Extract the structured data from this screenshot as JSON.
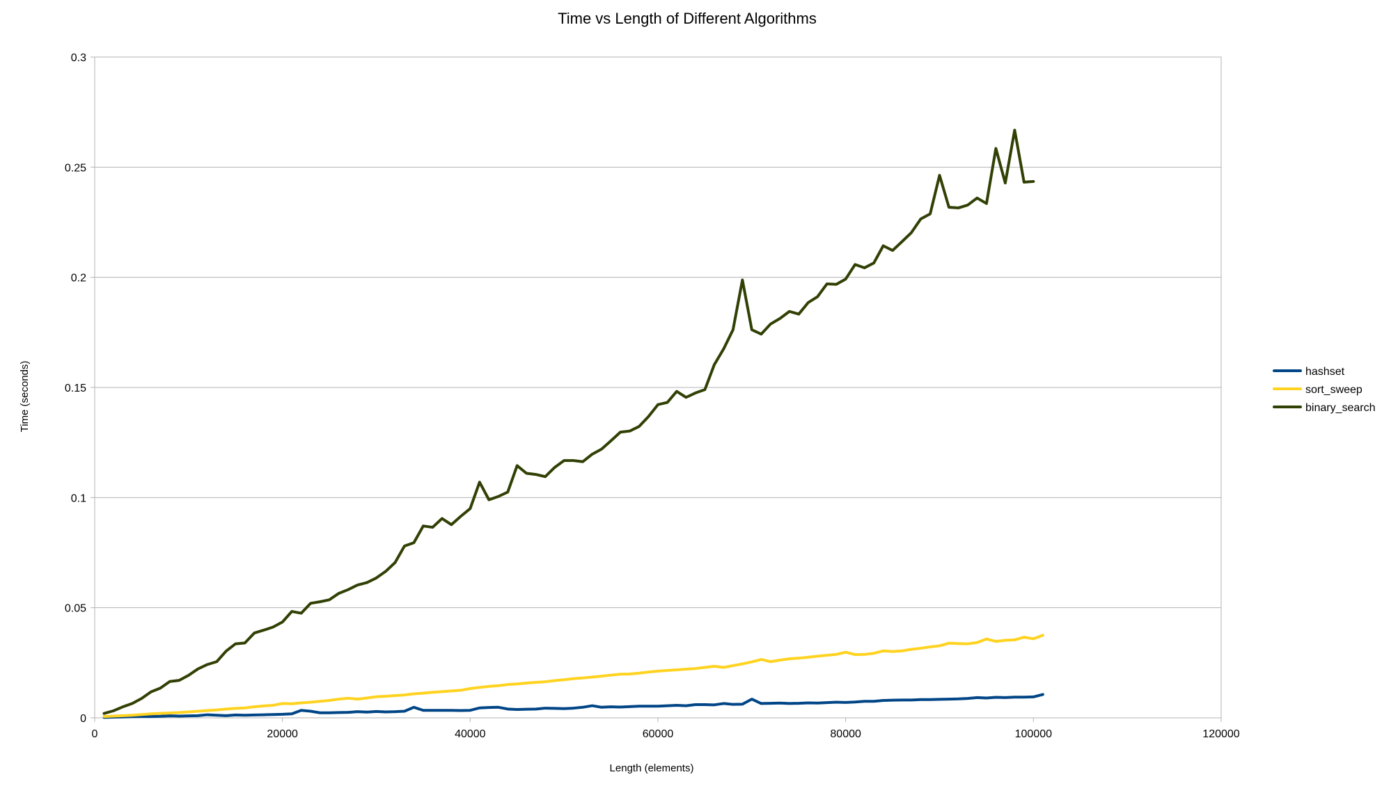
{
  "chart_data": {
    "type": "line",
    "title": "Time vs Length of Different Algorithms",
    "xlabel": "Length (elements)",
    "ylabel": "Time (seconds)",
    "xlim": [
      0,
      120000
    ],
    "ylim": [
      0,
      0.3
    ],
    "x_ticks": [
      "0",
      "20000",
      "40000",
      "60000",
      "80000",
      "100000",
      "120000"
    ],
    "y_ticks": [
      "0",
      "0.05",
      "0.1",
      "0.15",
      "0.2",
      "0.25",
      "0.3"
    ],
    "grid": "horizontal",
    "legend": "right",
    "x_start": 1000,
    "x_step": 1000,
    "series": [
      {
        "name": "hashset",
        "color": "#004586",
        "values": [
          0.0002,
          0.0003,
          0.0004,
          0.0005,
          0.0006,
          0.0006,
          0.0007,
          0.0009,
          0.0008,
          0.0009,
          0.001,
          0.0014,
          0.0012,
          0.001,
          0.0013,
          0.0012,
          0.0013,
          0.0014,
          0.0015,
          0.0016,
          0.0018,
          0.0034,
          0.003,
          0.0023,
          0.0023,
          0.0024,
          0.0025,
          0.0028,
          0.0026,
          0.0029,
          0.0027,
          0.0028,
          0.003,
          0.0048,
          0.0034,
          0.0034,
          0.0034,
          0.0034,
          0.0033,
          0.0034,
          0.0045,
          0.0047,
          0.0048,
          0.004,
          0.0038,
          0.0039,
          0.004,
          0.0044,
          0.0043,
          0.0042,
          0.0044,
          0.0048,
          0.0055,
          0.0048,
          0.005,
          0.0049,
          0.0051,
          0.0053,
          0.0053,
          0.0053,
          0.0055,
          0.0057,
          0.0055,
          0.006,
          0.006,
          0.0059,
          0.0065,
          0.0061,
          0.0062,
          0.0085,
          0.0065,
          0.0066,
          0.0067,
          0.0065,
          0.0066,
          0.0068,
          0.0067,
          0.0069,
          0.0071,
          0.007,
          0.0072,
          0.0075,
          0.0075,
          0.0079,
          0.008,
          0.0081,
          0.0081,
          0.0083,
          0.0083,
          0.0084,
          0.0085,
          0.0086,
          0.0088,
          0.0092,
          0.009,
          0.0093,
          0.0092,
          0.0094,
          0.0094,
          0.0095,
          0.0106
        ]
      },
      {
        "name": "sort_sweep",
        "color": "#ffd320",
        "values": [
          0.0006,
          0.0008,
          0.001,
          0.0012,
          0.0015,
          0.0018,
          0.002,
          0.0022,
          0.0024,
          0.0027,
          0.003,
          0.0033,
          0.0036,
          0.004,
          0.0043,
          0.0045,
          0.005,
          0.0054,
          0.0057,
          0.0065,
          0.0064,
          0.0068,
          0.0071,
          0.0075,
          0.0079,
          0.0085,
          0.0089,
          0.0085,
          0.009,
          0.0096,
          0.0098,
          0.0101,
          0.0104,
          0.0109,
          0.0112,
          0.0116,
          0.0119,
          0.0122,
          0.0125,
          0.0133,
          0.0138,
          0.0143,
          0.0146,
          0.0151,
          0.0154,
          0.0158,
          0.0161,
          0.0164,
          0.0169,
          0.0173,
          0.0178,
          0.0181,
          0.0185,
          0.0189,
          0.0194,
          0.0198,
          0.0199,
          0.0203,
          0.0208,
          0.0212,
          0.0215,
          0.0218,
          0.0221,
          0.0224,
          0.0229,
          0.0234,
          0.0229,
          0.0237,
          0.0245,
          0.0254,
          0.0265,
          0.0255,
          0.0262,
          0.0268,
          0.0271,
          0.0275,
          0.028,
          0.0284,
          0.0288,
          0.0298,
          0.0287,
          0.0288,
          0.0293,
          0.0304,
          0.0301,
          0.0304,
          0.0311,
          0.0316,
          0.0322,
          0.0327,
          0.0339,
          0.0337,
          0.0336,
          0.0342,
          0.0358,
          0.0347,
          0.0352,
          0.0354,
          0.0366,
          0.0359,
          0.0375
        ]
      },
      {
        "name": "binary_search",
        "color": "#314004",
        "values": [
          0.002,
          0.0032,
          0.005,
          0.0065,
          0.0088,
          0.0118,
          0.0135,
          0.0165,
          0.017,
          0.0193,
          0.0222,
          0.0242,
          0.0255,
          0.0303,
          0.0336,
          0.034,
          0.0385,
          0.0398,
          0.0412,
          0.0435,
          0.0483,
          0.0475,
          0.052,
          0.0527,
          0.0536,
          0.0565,
          0.0582,
          0.0603,
          0.0614,
          0.0635,
          0.0665,
          0.0705,
          0.078,
          0.0795,
          0.0871,
          0.0865,
          0.0905,
          0.0877,
          0.0915,
          0.095,
          0.107,
          0.099,
          0.1005,
          0.1025,
          0.1145,
          0.111,
          0.1105,
          0.1095,
          0.1137,
          0.1168,
          0.1168,
          0.1163,
          0.1197,
          0.122,
          0.1258,
          0.1297,
          0.1302,
          0.1323,
          0.1368,
          0.1422,
          0.1432,
          0.1482,
          0.1455,
          0.1475,
          0.149,
          0.1603,
          0.1675,
          0.1762,
          0.1988,
          0.1762,
          0.1742,
          0.1788,
          0.1813,
          0.1845,
          0.1833,
          0.1885,
          0.1912,
          0.197,
          0.1968,
          0.1992,
          0.2058,
          0.2043,
          0.2065,
          0.2143,
          0.2122,
          0.2162,
          0.2203,
          0.2265,
          0.2288,
          0.2463,
          0.2318,
          0.2315,
          0.2328,
          0.236,
          0.2335,
          0.2585,
          0.2428,
          0.2668,
          0.2432,
          0.2435
        ]
      }
    ]
  }
}
